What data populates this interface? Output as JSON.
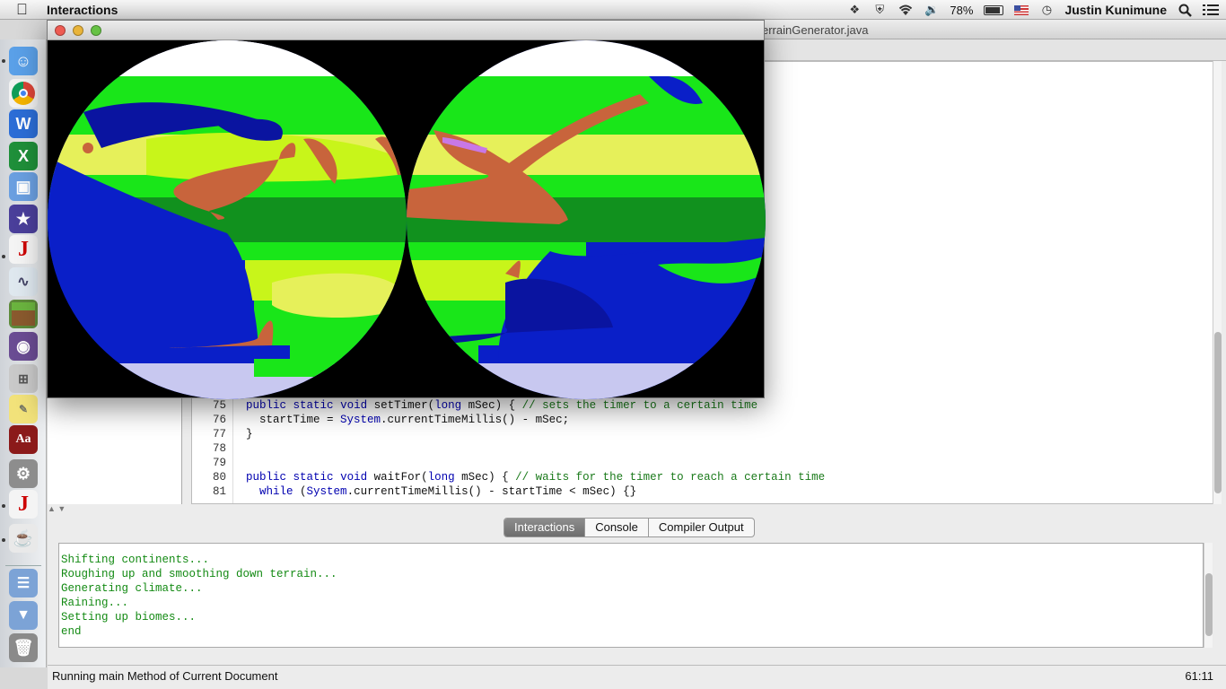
{
  "menubar": {
    "app_name": "Interactions",
    "battery": "78%",
    "user": "Justin Kunimune"
  },
  "main_window": {
    "title": "errainGenerator.java"
  },
  "editor": {
    "lines": [
      {
        "num": "75",
        "text": "public static void setTimer(long mSec) { // sets the timer to a certain time"
      },
      {
        "num": "76",
        "text": "  startTime = System.currentTimeMillis() - mSec;"
      },
      {
        "num": "77",
        "text": "}"
      },
      {
        "num": "78",
        "text": ""
      },
      {
        "num": "79",
        "text": ""
      },
      {
        "num": "80",
        "text": "public static void waitFor(long mSec) { // waits for the timer to reach a certain time"
      },
      {
        "num": "81",
        "text": "  while (System.currentTimeMillis() - startTime < mSec) {}"
      }
    ]
  },
  "tabs": [
    {
      "label": "Interactions"
    },
    {
      "label": "Console"
    },
    {
      "label": "Compiler Output"
    }
  ],
  "console": {
    "lines": [
      "Shifting continents...",
      "Roughing up and smoothing down terrain...",
      "Generating climate...",
      "Raining...",
      "Setting up biomes...",
      "end"
    ]
  },
  "status": {
    "message": "Running main Method of Current Document",
    "position": "61:11"
  },
  "dock": {
    "apps": [
      "finder-icon",
      "chrome-icon",
      "word-icon",
      "excel-icon",
      "keynote-icon",
      "imovie-icon",
      "drjava-icon",
      "grapher-icon",
      "minecraft-icon",
      "github-icon",
      "calculator-icon",
      "stickies-icon",
      "dictionary-icon",
      "system-preferences-icon",
      "drjava-icon",
      "java-icon",
      "applications-folder-icon",
      "downloads-folder-icon",
      "trash-icon"
    ]
  },
  "colors": {
    "ocean": "#0a1fc8",
    "deep_ocean": "#0a14a0",
    "grassland": "#19e619",
    "forest": "#11911e",
    "savanna": "#c8f51a",
    "desert": "#e6f05a",
    "mountain": "#c8643c",
    "ice": "#ffffff",
    "polar_sea": "#c8c8f0",
    "accent_tab": "#7a7a7a"
  }
}
